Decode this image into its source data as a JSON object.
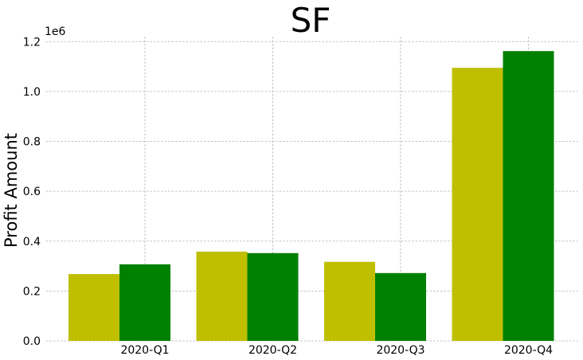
{
  "chart_data": {
    "type": "bar",
    "title": "SF",
    "xlabel": "",
    "ylabel": "Profit Amount",
    "y_offset_label": "1e6",
    "categories": [
      "2020-Q1",
      "2020-Q2",
      "2020-Q3",
      "2020-Q4"
    ],
    "series": [
      {
        "color": "#bfbf00",
        "values": [
          0.268,
          0.358,
          0.317,
          1.095
        ]
      },
      {
        "color": "#008000",
        "values": [
          0.307,
          0.352,
          0.272,
          1.162
        ]
      }
    ],
    "ylim": [
      0,
      1.22
    ],
    "yticks": [
      0.0,
      0.2,
      0.4,
      0.6,
      0.8,
      1.0,
      1.2
    ],
    "ytick_labels": [
      "0.0",
      "0.2",
      "0.4",
      "0.6",
      "0.8",
      "1.0",
      "1.2"
    ],
    "grid": true
  }
}
